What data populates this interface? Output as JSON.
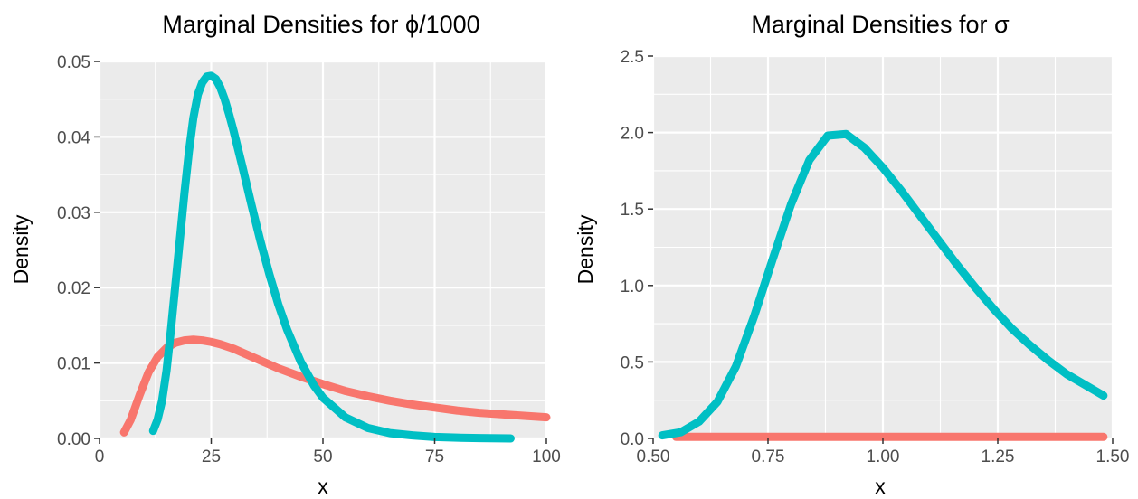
{
  "chart_data": [
    {
      "type": "line",
      "title": "Marginal Densities for ϕ/1000",
      "xlabel": "x",
      "ylabel": "Density",
      "xlim": [
        0,
        100
      ],
      "ylim": [
        0,
        0.05
      ],
      "x_ticks": [
        0,
        25,
        50,
        75,
        100
      ],
      "x_tick_labels": [
        "0",
        "25",
        "50",
        "75",
        "100"
      ],
      "y_ticks": [
        0,
        0.01,
        0.02,
        0.03,
        0.04,
        0.05
      ],
      "y_tick_labels": [
        "0.00",
        "0.01",
        "0.02",
        "0.03",
        "0.04",
        "0.05"
      ],
      "grid": true,
      "legend": "none",
      "series": [
        {
          "color": "#f8766d",
          "x": [
            5.5,
            7,
            9,
            11,
            13,
            15,
            17,
            19,
            21,
            23,
            25,
            27,
            30,
            35,
            40,
            45,
            50,
            55,
            60,
            65,
            70,
            75,
            80,
            85,
            90,
            95,
            100
          ],
          "y": [
            0.0008,
            0.0025,
            0.0058,
            0.0088,
            0.0108,
            0.012,
            0.0127,
            0.013,
            0.0131,
            0.013,
            0.0128,
            0.0125,
            0.0119,
            0.0106,
            0.0093,
            0.0082,
            0.0072,
            0.0063,
            0.0056,
            0.005,
            0.0045,
            0.0041,
            0.0037,
            0.0034,
            0.0032,
            0.003,
            0.0028
          ]
        },
        {
          "color": "#00bfc4",
          "x": [
            12,
            13,
            14,
            15,
            16,
            17,
            18,
            19,
            20,
            21,
            22,
            23,
            24,
            25,
            26,
            27,
            28,
            29,
            30,
            32,
            34,
            36,
            38,
            40,
            42,
            45,
            48,
            50,
            55,
            60,
            65,
            70,
            75,
            80,
            85,
            92
          ],
          "y": [
            0.001,
            0.0025,
            0.005,
            0.009,
            0.0145,
            0.0205,
            0.0265,
            0.0325,
            0.038,
            0.0425,
            0.0456,
            0.0472,
            0.048,
            0.0481,
            0.0477,
            0.0466,
            0.045,
            0.043,
            0.0408,
            0.036,
            0.031,
            0.0262,
            0.0218,
            0.0178,
            0.0144,
            0.0102,
            0.007,
            0.0054,
            0.0028,
            0.0014,
            0.0007,
            0.0004,
            0.0002,
            0.0001,
            5e-05,
            0.0
          ]
        }
      ]
    },
    {
      "type": "line",
      "title": "Marginal Densities for σ",
      "xlabel": "x",
      "ylabel": "Density",
      "xlim": [
        0.5,
        1.5
      ],
      "ylim": [
        0,
        2.5
      ],
      "x_ticks": [
        0.5,
        0.75,
        1.0,
        1.25,
        1.5
      ],
      "x_tick_labels": [
        "0.50",
        "0.75",
        "1.00",
        "1.25",
        "1.50"
      ],
      "y_ticks": [
        0,
        0.5,
        1.0,
        1.5,
        2.0,
        2.5
      ],
      "y_tick_labels": [
        "0.0",
        "0.5",
        "1.0",
        "1.5",
        "2.0",
        "2.5"
      ],
      "grid": true,
      "legend": "none",
      "series": [
        {
          "color": "#f8766d",
          "x": [
            0.55,
            1.48
          ],
          "y": [
            0.01,
            0.01
          ]
        },
        {
          "color": "#00bfc4",
          "x": [
            0.52,
            0.56,
            0.6,
            0.64,
            0.68,
            0.72,
            0.76,
            0.8,
            0.84,
            0.88,
            0.92,
            0.96,
            1.0,
            1.04,
            1.08,
            1.12,
            1.16,
            1.2,
            1.24,
            1.28,
            1.32,
            1.36,
            1.4,
            1.44,
            1.48
          ],
          "y": [
            0.02,
            0.04,
            0.11,
            0.24,
            0.47,
            0.8,
            1.17,
            1.53,
            1.82,
            1.98,
            1.99,
            1.9,
            1.77,
            1.62,
            1.46,
            1.3,
            1.14,
            0.99,
            0.85,
            0.72,
            0.61,
            0.51,
            0.42,
            0.35,
            0.28
          ]
        }
      ]
    }
  ]
}
